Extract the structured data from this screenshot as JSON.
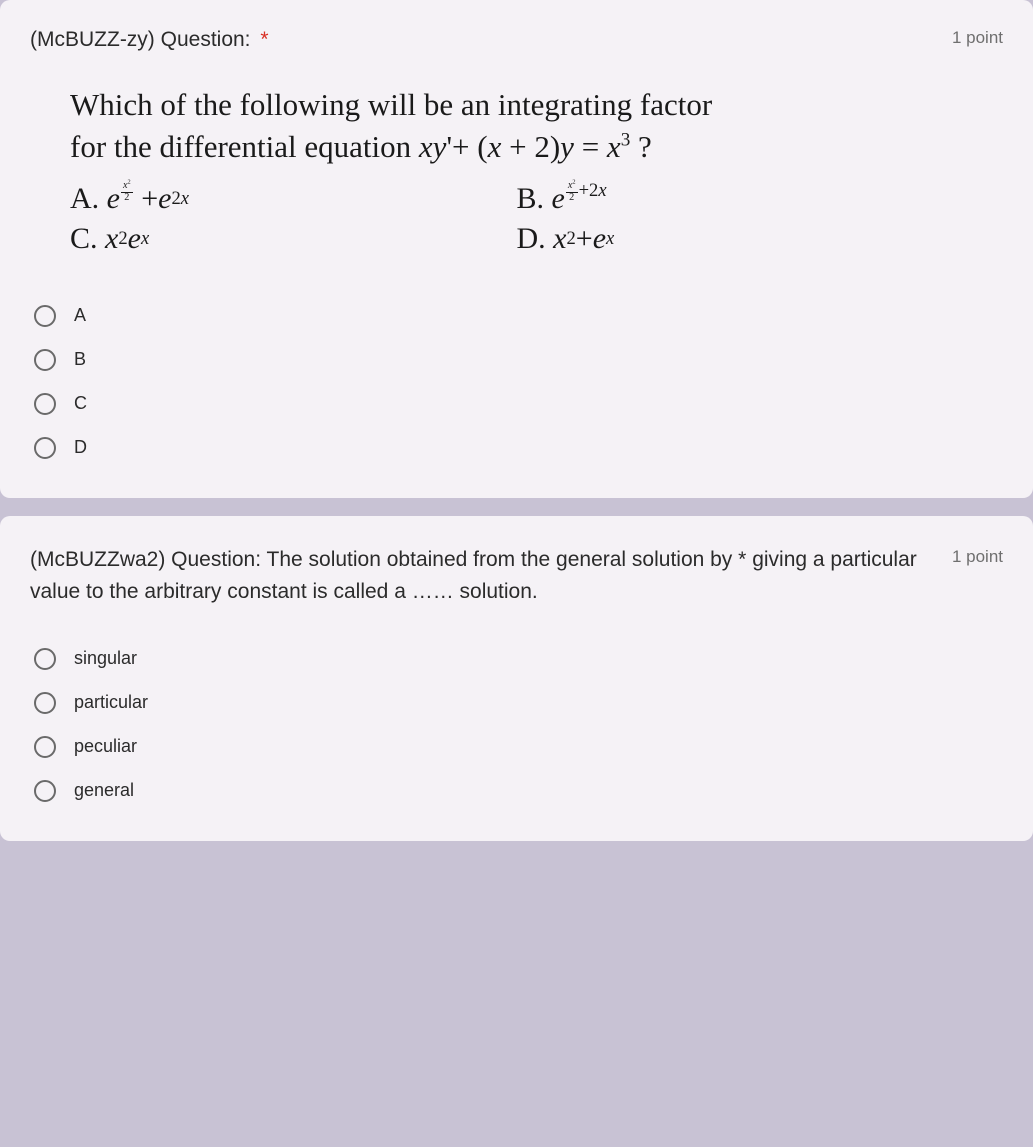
{
  "colors": {
    "page_bg": "#c8c2d4",
    "card_bg": "#f5f2f6",
    "text": "#2b2b2b",
    "muted": "#6f6f6f",
    "required": "#d93025",
    "radio_border": "#6a6a6a"
  },
  "q1": {
    "title_prefix": "(McBUZZ-zy) Question:",
    "points": "1 point",
    "stem_line1": "Which of the following will be an integrating factor",
    "stem_line2_pre": "for the differential equation ",
    "equation_plain": "xy' + (x + 2)y = x³ ?",
    "choices": {
      "A": {
        "label": "A.",
        "expr_plain": "e^(x²/2) + e^(2x)"
      },
      "B": {
        "label": "B.",
        "expr_plain": "e^(x²/2 + 2x)"
      },
      "C": {
        "label": "C.",
        "expr_plain": "x²eˣ"
      },
      "D": {
        "label": "D.",
        "expr_plain": "x² + eˣ"
      }
    },
    "options": [
      "A",
      "B",
      "C",
      "D"
    ]
  },
  "q2": {
    "title_prefix": "(McBUZZwa2) Question:",
    "text": "The solution obtained from the general solution by giving a particular value to the arbitrary constant is called a …… solution.",
    "points": "1 point",
    "options": [
      "singular",
      "particular",
      "peculiar",
      "general"
    ]
  }
}
